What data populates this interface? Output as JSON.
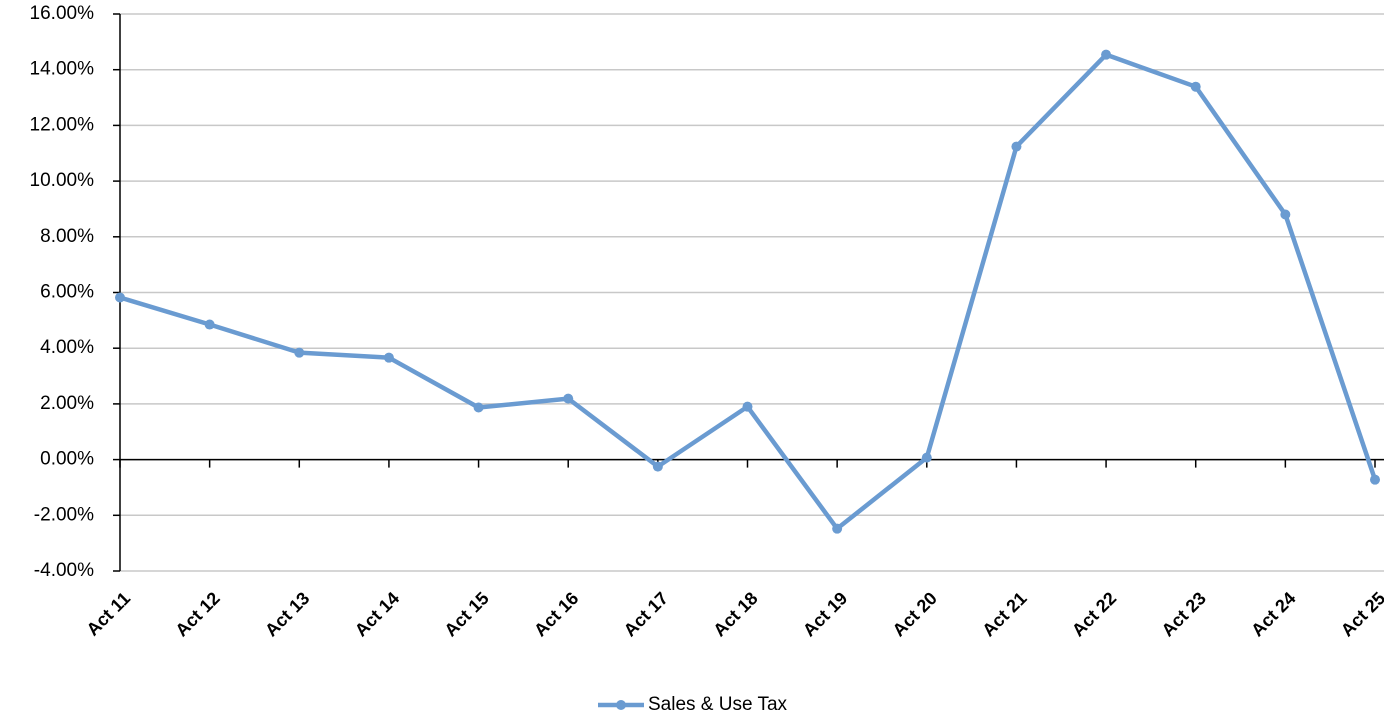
{
  "chart_data": {
    "type": "line",
    "categories": [
      "Act 11",
      "Act 12",
      "Act 13",
      "Act 14",
      "Act 15",
      "Act 16",
      "Act 17",
      "Act 18",
      "Act 19",
      "Act 20",
      "Act 21",
      "Act 22",
      "Act 23",
      "Act 24",
      "Act 25"
    ],
    "series": [
      {
        "name": "Sales & Use Tax",
        "color": "#6a9bd1",
        "values": [
          5.82,
          4.85,
          3.84,
          3.66,
          1.87,
          2.19,
          -0.25,
          1.9,
          -2.48,
          0.07,
          11.24,
          14.54,
          13.39,
          8.8,
          -0.72
        ]
      }
    ],
    "ylim": [
      -4,
      16
    ],
    "yticks": [
      {
        "value": -4,
        "label": "-4.00%"
      },
      {
        "value": -2,
        "label": "-2.00%"
      },
      {
        "value": 0,
        "label": "0.00%"
      },
      {
        "value": 2,
        "label": "2.00%"
      },
      {
        "value": 4,
        "label": "4.00%"
      },
      {
        "value": 6,
        "label": "6.00%"
      },
      {
        "value": 8,
        "label": "8.00%"
      },
      {
        "value": 10,
        "label": "10.00%"
      },
      {
        "value": 12,
        "label": "12.00%"
      },
      {
        "value": 14,
        "label": "14.00%"
      },
      {
        "value": 16,
        "label": "16.00%"
      }
    ],
    "grid": true,
    "legend": "bottom"
  }
}
